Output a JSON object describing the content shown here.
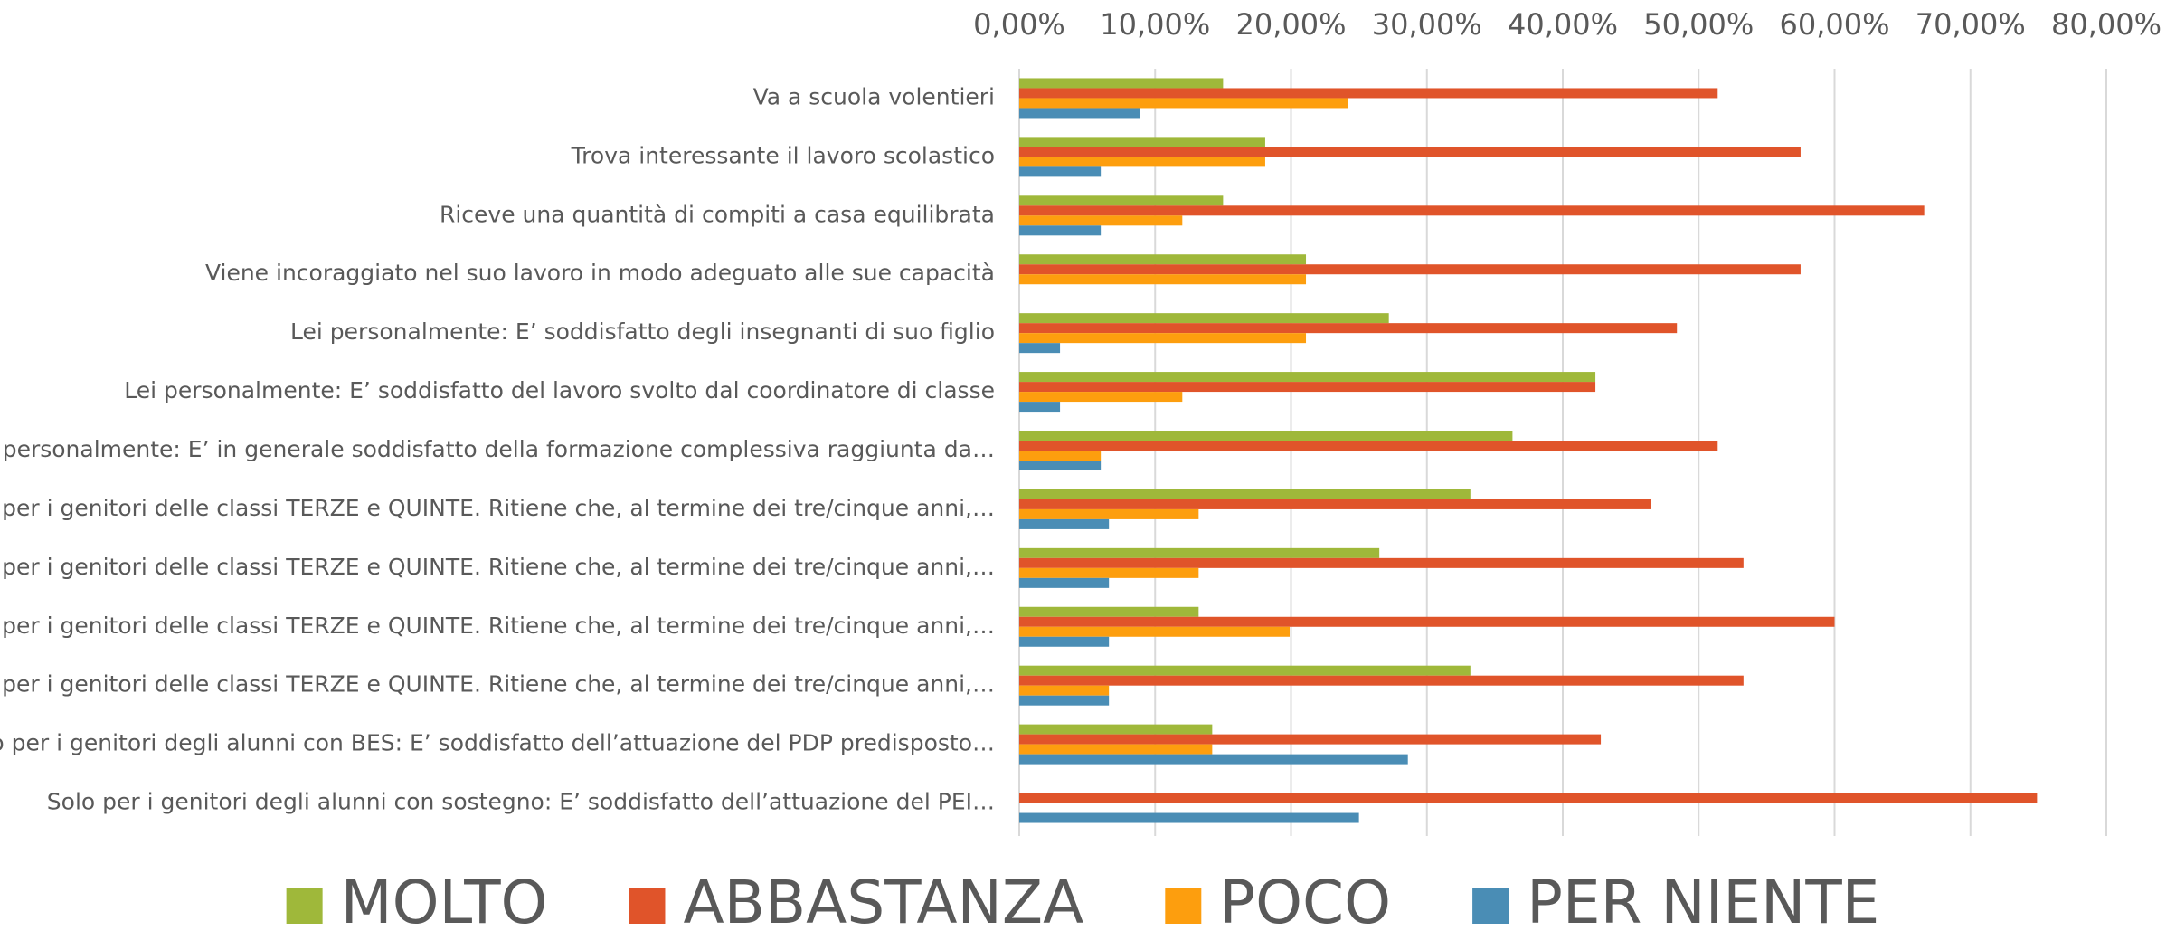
{
  "chart_data": {
    "type": "bar",
    "orientation": "horizontal",
    "categories": [
      "Va a scuola volentieri ",
      "Trova interessante il lavoro scolastico",
      "Riceve una quantità di compiti a casa equilibrata ",
      "Viene incoraggiato nel suo lavoro in modo adeguato alle sue capacità",
      "Lei personalmente: E’ soddisfatto degli insegnanti di suo figlio",
      "Lei personalmente: E’ soddisfatto del lavoro svolto dal coordinatore di classe",
      "Lei personalmente: E’ in generale soddisfatto della formazione complessiva raggiunta da…",
      "Solo per i genitori delle classi TERZE e QUINTE. Ritiene che, al termine dei tre/cinque anni,…",
      "Solo per i genitori delle classi TERZE e QUINTE. Ritiene che, al termine dei tre/cinque anni,…",
      "Solo per i genitori delle classi TERZE e QUINTE. Ritiene che, al termine dei tre/cinque anni,…",
      "Solo per i genitori delle classi TERZE e QUINTE. Ritiene che, al termine dei tre/cinque anni,…",
      "Solo per i genitori degli alunni con BES: E’ soddisfatto dell’attuazione del PDP predisposto…",
      "Solo per i genitori degli alunni con sostegno: E’ soddisfatto dell’attuazione del PEI…"
    ],
    "series": [
      {
        "name": "MOLTO",
        "color": "#9fb83a",
        "values": [
          15.0,
          18.1,
          15.0,
          21.1,
          27.2,
          42.4,
          36.3,
          33.2,
          26.5,
          13.2,
          33.2,
          14.2,
          0
        ]
      },
      {
        "name": "ABBASTANZA",
        "color": "#e0542a",
        "values": [
          51.4,
          57.5,
          66.6,
          57.5,
          48.4,
          42.4,
          51.4,
          46.5,
          53.3,
          60.0,
          53.3,
          42.8,
          74.9
        ]
      },
      {
        "name": "POCO",
        "color": "#fd9e0e",
        "values": [
          24.2,
          18.1,
          12.0,
          21.1,
          21.1,
          12.0,
          6.0,
          13.2,
          13.2,
          19.9,
          6.6,
          14.2,
          0
        ]
      },
      {
        "name": "PER NIENTE",
        "color": "#4a8db5",
        "values": [
          8.9,
          6.0,
          6.0,
          0,
          3.0,
          3.0,
          6.0,
          6.6,
          6.6,
          6.6,
          6.6,
          28.6,
          25.0
        ]
      }
    ],
    "xlim": [
      0,
      80
    ],
    "xticks": [
      {
        "value": 0,
        "label": "0,00%"
      },
      {
        "value": 10,
        "label": "10,00%"
      },
      {
        "value": 20,
        "label": "20,00%"
      },
      {
        "value": 30,
        "label": "30,00%"
      },
      {
        "value": 40,
        "label": "40,00%"
      },
      {
        "value": 50,
        "label": "50,00%"
      },
      {
        "value": 60,
        "label": "60,00%"
      },
      {
        "value": 70,
        "label": "70,00%"
      },
      {
        "value": 80,
        "label": "80,00%"
      }
    ],
    "grid": true,
    "legend": "bottom"
  }
}
